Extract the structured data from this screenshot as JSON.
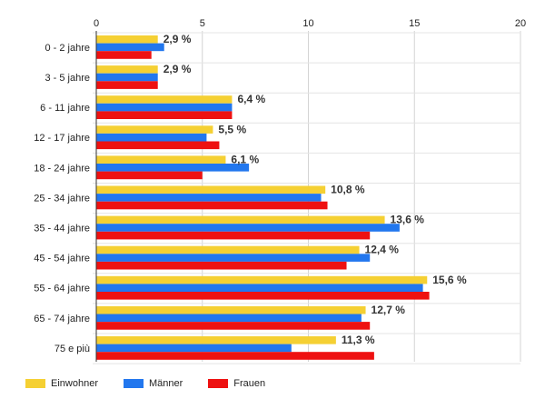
{
  "chart_data": {
    "type": "bar",
    "orientation": "horizontal",
    "categories": [
      "0 - 2 jahre",
      "3 - 5 jahre",
      "6 - 11 jahre",
      "12 - 17 jahre",
      "18 - 24 jahre",
      "25 - 34 jahre",
      "35 - 44 jahre",
      "45 - 54 jahre",
      "55 - 64 jahre",
      "65 - 74 jahre",
      "75 e più"
    ],
    "series": [
      {
        "name": "Einwohner",
        "color": "#f5d033",
        "values": [
          2.9,
          2.9,
          6.4,
          5.5,
          6.1,
          10.8,
          13.6,
          12.4,
          15.6,
          12.7,
          11.3
        ]
      },
      {
        "name": "Männer",
        "color": "#2277ee",
        "values": [
          3.2,
          2.9,
          6.4,
          5.2,
          7.2,
          10.6,
          14.3,
          12.9,
          15.4,
          12.5,
          9.2
        ]
      },
      {
        "name": "Frauen",
        "color": "#ee1111",
        "values": [
          2.6,
          2.9,
          6.4,
          5.8,
          5.0,
          10.9,
          12.9,
          11.8,
          15.7,
          12.9,
          13.1
        ]
      }
    ],
    "data_labels": [
      "2,9 %",
      "2,9 %",
      "6,4 %",
      "5,5 %",
      "6,1 %",
      "10,8 %",
      "13,6 %",
      "12,4 %",
      "15,6 %",
      "12,7 %",
      "11,3 %"
    ],
    "xlim": [
      0,
      20
    ],
    "xticks": [
      "0",
      "5",
      "10",
      "15",
      "20"
    ],
    "xaxis_position": "top",
    "grid": true,
    "legend": "bottom-left"
  }
}
